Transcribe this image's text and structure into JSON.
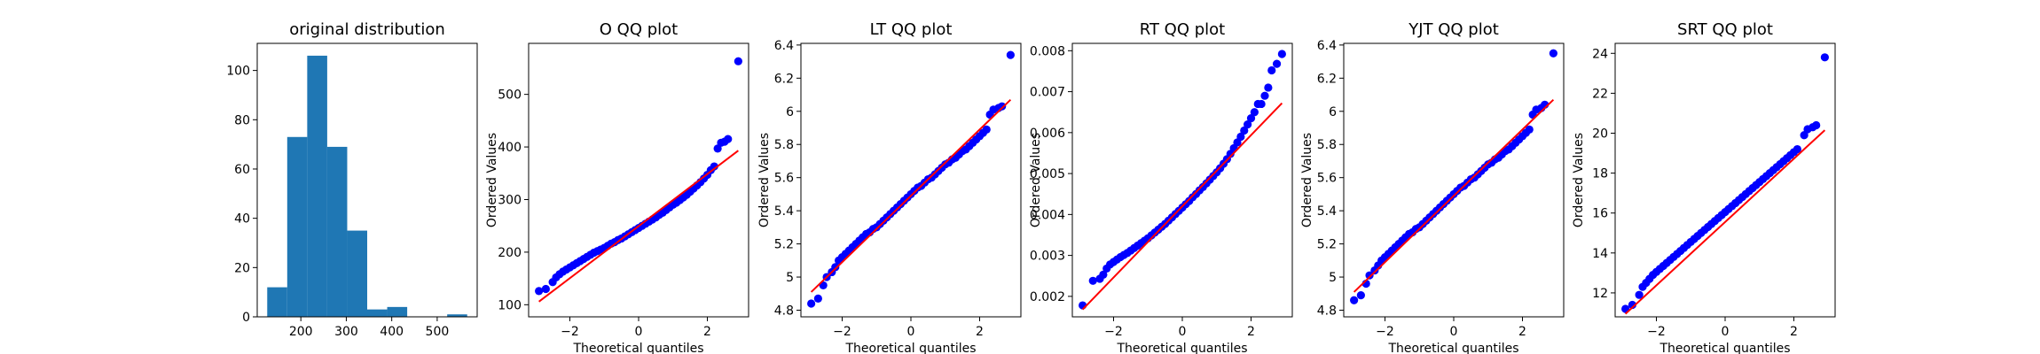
{
  "chart_data": [
    {
      "type": "bar",
      "title": "original distribution",
      "xlabel": "",
      "ylabel": "",
      "bins": [
        [
          126,
          170,
          12
        ],
        [
          170,
          214,
          73
        ],
        [
          214,
          258,
          106
        ],
        [
          258,
          302,
          69
        ],
        [
          302,
          346,
          35
        ],
        [
          346,
          390,
          3
        ],
        [
          390,
          434,
          4
        ],
        [
          434,
          478,
          0
        ],
        [
          478,
          522,
          0
        ],
        [
          522,
          566,
          1
        ]
      ],
      "xlim": [
        104,
        588
      ],
      "ylim": [
        0,
        111
      ],
      "xticks": [
        200,
        300,
        400,
        500
      ],
      "yticks": [
        0,
        20,
        40,
        60,
        80,
        100
      ],
      "color": "#1f77b4"
    },
    {
      "type": "scatter",
      "title": "O QQ plot",
      "xlabel": "Theoretical quantiles",
      "ylabel": "Ordered Values",
      "xlim": [
        -3.2,
        3.2
      ],
      "ylim": [
        77,
        597
      ],
      "xticks": [
        -2,
        0,
        2
      ],
      "yticks": [
        100,
        200,
        300,
        400,
        500
      ],
      "fit_line": {
        "x": [
          -2.9,
          2.9
        ],
        "y": [
          106,
          393
        ]
      },
      "points": [
        [
          -2.9,
          126
        ],
        [
          -2.7,
          130
        ],
        [
          -2.5,
          143
        ],
        [
          -2.4,
          152
        ],
        [
          -2.3,
          158
        ],
        [
          -2.2,
          163
        ],
        [
          -2.1,
          167
        ],
        [
          -2.0,
          171
        ],
        [
          -1.9,
          175
        ],
        [
          -1.8,
          179
        ],
        [
          -1.7,
          183
        ],
        [
          -1.6,
          187
        ],
        [
          -1.5,
          191
        ],
        [
          -1.4,
          195
        ],
        [
          -1.3,
          199
        ],
        [
          -1.2,
          202
        ],
        [
          -1.1,
          205
        ],
        [
          -1.0,
          208
        ],
        [
          -0.9,
          212
        ],
        [
          -0.8,
          216
        ],
        [
          -0.7,
          219
        ],
        [
          -0.6,
          223
        ],
        [
          -0.5,
          226
        ],
        [
          -0.4,
          230
        ],
        [
          -0.3,
          234
        ],
        [
          -0.2,
          238
        ],
        [
          -0.1,
          242
        ],
        [
          0.0,
          246
        ],
        [
          0.1,
          250
        ],
        [
          0.2,
          254
        ],
        [
          0.3,
          258
        ],
        [
          0.4,
          262
        ],
        [
          0.5,
          266
        ],
        [
          0.6,
          271
        ],
        [
          0.7,
          275
        ],
        [
          0.8,
          280
        ],
        [
          0.9,
          285
        ],
        [
          1.0,
          290
        ],
        [
          1.1,
          294
        ],
        [
          1.2,
          299
        ],
        [
          1.3,
          304
        ],
        [
          1.4,
          309
        ],
        [
          1.5,
          315
        ],
        [
          1.6,
          321
        ],
        [
          1.7,
          327
        ],
        [
          1.8,
          333
        ],
        [
          1.9,
          340
        ],
        [
          2.0,
          347
        ],
        [
          2.1,
          356
        ],
        [
          2.2,
          363
        ],
        [
          2.3,
          397
        ],
        [
          2.4,
          408
        ],
        [
          2.5,
          410
        ],
        [
          2.6,
          415
        ],
        [
          2.9,
          563
        ]
      ]
    },
    {
      "type": "scatter",
      "title": "LT QQ plot",
      "xlabel": "Theoretical quantiles",
      "ylabel": "Ordered Values",
      "xlim": [
        -3.2,
        3.2
      ],
      "ylim": [
        4.76,
        6.41
      ],
      "xticks": [
        -2,
        0,
        2
      ],
      "yticks": [
        4.8,
        5.0,
        5.2,
        5.4,
        5.6,
        5.8,
        6.0,
        6.2,
        6.4
      ],
      "fit_line": {
        "x": [
          -2.9,
          2.9
        ],
        "y": [
          4.91,
          6.07
        ]
      },
      "points": [
        [
          -2.9,
          4.84
        ],
        [
          -2.7,
          4.87
        ],
        [
          -2.55,
          4.95
        ],
        [
          -2.45,
          5.0
        ],
        [
          -2.3,
          5.03
        ],
        [
          -2.2,
          5.06
        ],
        [
          -2.1,
          5.1
        ],
        [
          -2.0,
          5.12
        ],
        [
          -1.9,
          5.14
        ],
        [
          -1.8,
          5.16
        ],
        [
          -1.7,
          5.18
        ],
        [
          -1.6,
          5.2
        ],
        [
          -1.5,
          5.22
        ],
        [
          -1.4,
          5.24
        ],
        [
          -1.3,
          5.26
        ],
        [
          -1.2,
          5.27
        ],
        [
          -1.1,
          5.29
        ],
        [
          -1.0,
          5.3
        ],
        [
          -0.9,
          5.32
        ],
        [
          -0.8,
          5.34
        ],
        [
          -0.7,
          5.36
        ],
        [
          -0.6,
          5.38
        ],
        [
          -0.5,
          5.4
        ],
        [
          -0.4,
          5.42
        ],
        [
          -0.3,
          5.44
        ],
        [
          -0.2,
          5.46
        ],
        [
          -0.1,
          5.48
        ],
        [
          0.0,
          5.5
        ],
        [
          0.1,
          5.52
        ],
        [
          0.2,
          5.54
        ],
        [
          0.3,
          5.55
        ],
        [
          0.4,
          5.57
        ],
        [
          0.5,
          5.59
        ],
        [
          0.6,
          5.6
        ],
        [
          0.7,
          5.62
        ],
        [
          0.8,
          5.64
        ],
        [
          0.9,
          5.66
        ],
        [
          1.0,
          5.68
        ],
        [
          1.1,
          5.69
        ],
        [
          1.2,
          5.71
        ],
        [
          1.3,
          5.72
        ],
        [
          1.4,
          5.74
        ],
        [
          1.5,
          5.76
        ],
        [
          1.6,
          5.77
        ],
        [
          1.7,
          5.79
        ],
        [
          1.8,
          5.81
        ],
        [
          1.9,
          5.83
        ],
        [
          2.0,
          5.85
        ],
        [
          2.1,
          5.87
        ],
        [
          2.2,
          5.89
        ],
        [
          2.3,
          5.98
        ],
        [
          2.4,
          6.01
        ],
        [
          2.55,
          6.02
        ],
        [
          2.65,
          6.03
        ],
        [
          2.9,
          6.34
        ]
      ]
    },
    {
      "type": "scatter",
      "title": "RT QQ plot",
      "xlabel": "Theoretical quantiles",
      "ylabel": "Ordered Values",
      "xlim": [
        -3.2,
        3.2
      ],
      "ylim": [
        0.0015,
        0.00818
      ],
      "xticks": [
        -2,
        0,
        2
      ],
      "yticks": [
        0.002,
        0.003,
        0.004,
        0.005,
        0.006,
        0.007,
        0.008
      ],
      "fit_line": {
        "x": [
          -2.9,
          2.9
        ],
        "y": [
          0.00168,
          0.00672
        ]
      },
      "points": [
        [
          -2.9,
          0.00178
        ],
        [
          -2.6,
          0.00238
        ],
        [
          -2.4,
          0.00243
        ],
        [
          -2.3,
          0.00253
        ],
        [
          -2.2,
          0.00268
        ],
        [
          -2.1,
          0.00278
        ],
        [
          -2.0,
          0.00284
        ],
        [
          -1.9,
          0.0029
        ],
        [
          -1.8,
          0.00296
        ],
        [
          -1.7,
          0.00301
        ],
        [
          -1.6,
          0.00306
        ],
        [
          -1.5,
          0.00312
        ],
        [
          -1.4,
          0.00318
        ],
        [
          -1.3,
          0.00324
        ],
        [
          -1.2,
          0.0033
        ],
        [
          -1.1,
          0.00336
        ],
        [
          -1.0,
          0.00342
        ],
        [
          -0.9,
          0.00349
        ],
        [
          -0.8,
          0.00356
        ],
        [
          -0.7,
          0.00363
        ],
        [
          -0.6,
          0.0037
        ],
        [
          -0.5,
          0.00377
        ],
        [
          -0.4,
          0.00385
        ],
        [
          -0.3,
          0.00393
        ],
        [
          -0.2,
          0.00401
        ],
        [
          -0.1,
          0.00409
        ],
        [
          0.0,
          0.00417
        ],
        [
          0.1,
          0.00425
        ],
        [
          0.2,
          0.00433
        ],
        [
          0.3,
          0.00442
        ],
        [
          0.4,
          0.0045
        ],
        [
          0.5,
          0.00459
        ],
        [
          0.6,
          0.00467
        ],
        [
          0.7,
          0.00476
        ],
        [
          0.8,
          0.00485
        ],
        [
          0.9,
          0.00494
        ],
        [
          1.0,
          0.00503
        ],
        [
          1.1,
          0.00513
        ],
        [
          1.2,
          0.00524
        ],
        [
          1.3,
          0.00535
        ],
        [
          1.4,
          0.00548
        ],
        [
          1.5,
          0.00562
        ],
        [
          1.6,
          0.00576
        ],
        [
          1.7,
          0.0059
        ],
        [
          1.8,
          0.00605
        ],
        [
          1.9,
          0.0062
        ],
        [
          2.0,
          0.00635
        ],
        [
          2.1,
          0.0065
        ],
        [
          2.2,
          0.0067
        ],
        [
          2.3,
          0.0067
        ],
        [
          2.4,
          0.0069
        ],
        [
          2.5,
          0.0071
        ],
        [
          2.6,
          0.00752
        ],
        [
          2.75,
          0.00768
        ],
        [
          2.9,
          0.00792
        ]
      ]
    },
    {
      "type": "scatter",
      "title": "YJT QQ plot",
      "xlabel": "Theoretical quantiles",
      "ylabel": "Ordered Values",
      "xlim": [
        -3.2,
        3.2
      ],
      "ylim": [
        4.76,
        6.41
      ],
      "xticks": [
        -2,
        0,
        2
      ],
      "yticks": [
        4.8,
        5.0,
        5.2,
        5.4,
        5.6,
        5.8,
        6.0,
        6.2,
        6.4
      ],
      "fit_line": {
        "x": [
          -2.9,
          2.9
        ],
        "y": [
          4.91,
          6.07
        ]
      },
      "points": [
        [
          -2.9,
          4.86
        ],
        [
          -2.7,
          4.89
        ],
        [
          -2.55,
          4.96
        ],
        [
          -2.45,
          5.01
        ],
        [
          -2.3,
          5.04
        ],
        [
          -2.2,
          5.07
        ],
        [
          -2.1,
          5.1
        ],
        [
          -2.0,
          5.12
        ],
        [
          -1.9,
          5.14
        ],
        [
          -1.8,
          5.16
        ],
        [
          -1.7,
          5.18
        ],
        [
          -1.6,
          5.2
        ],
        [
          -1.5,
          5.22
        ],
        [
          -1.4,
          5.24
        ],
        [
          -1.3,
          5.26
        ],
        [
          -1.2,
          5.27
        ],
        [
          -1.1,
          5.29
        ],
        [
          -1.0,
          5.3
        ],
        [
          -0.9,
          5.32
        ],
        [
          -0.8,
          5.34
        ],
        [
          -0.7,
          5.36
        ],
        [
          -0.6,
          5.38
        ],
        [
          -0.5,
          5.4
        ],
        [
          -0.4,
          5.42
        ],
        [
          -0.3,
          5.44
        ],
        [
          -0.2,
          5.46
        ],
        [
          -0.1,
          5.48
        ],
        [
          0.0,
          5.5
        ],
        [
          0.1,
          5.52
        ],
        [
          0.2,
          5.54
        ],
        [
          0.3,
          5.55
        ],
        [
          0.4,
          5.57
        ],
        [
          0.5,
          5.59
        ],
        [
          0.6,
          5.6
        ],
        [
          0.7,
          5.62
        ],
        [
          0.8,
          5.64
        ],
        [
          0.9,
          5.66
        ],
        [
          1.0,
          5.68
        ],
        [
          1.1,
          5.69
        ],
        [
          1.2,
          5.71
        ],
        [
          1.3,
          5.72
        ],
        [
          1.4,
          5.74
        ],
        [
          1.5,
          5.76
        ],
        [
          1.6,
          5.77
        ],
        [
          1.7,
          5.79
        ],
        [
          1.8,
          5.81
        ],
        [
          1.9,
          5.83
        ],
        [
          2.0,
          5.85
        ],
        [
          2.1,
          5.87
        ],
        [
          2.2,
          5.89
        ],
        [
          2.3,
          5.98
        ],
        [
          2.4,
          6.01
        ],
        [
          2.55,
          6.02
        ],
        [
          2.65,
          6.04
        ],
        [
          2.9,
          6.35
        ]
      ]
    },
    {
      "type": "scatter",
      "title": "SRT QQ plot",
      "xlabel": "Theoretical quantiles",
      "ylabel": "Ordered Values",
      "xlim": [
        -3.2,
        3.2
      ],
      "ylim": [
        10.8,
        24.5
      ],
      "xticks": [
        -2,
        0,
        2
      ],
      "yticks": [
        12,
        14,
        16,
        18,
        20,
        22,
        24
      ],
      "fit_line": {
        "x": [
          -2.9,
          2.9
        ],
        "y": [
          10.95,
          20.15
        ]
      },
      "points": [
        [
          -2.9,
          11.2
        ],
        [
          -2.7,
          11.4
        ],
        [
          -2.5,
          11.9
        ],
        [
          -2.4,
          12.3
        ],
        [
          -2.3,
          12.5
        ],
        [
          -2.2,
          12.7
        ],
        [
          -2.1,
          12.9
        ],
        [
          -2.0,
          13.05
        ],
        [
          -1.9,
          13.2
        ],
        [
          -1.8,
          13.35
        ],
        [
          -1.7,
          13.5
        ],
        [
          -1.6,
          13.65
        ],
        [
          -1.5,
          13.8
        ],
        [
          -1.4,
          13.95
        ],
        [
          -1.3,
          14.1
        ],
        [
          -1.2,
          14.25
        ],
        [
          -1.1,
          14.4
        ],
        [
          -1.0,
          14.55
        ],
        [
          -0.9,
          14.7
        ],
        [
          -0.8,
          14.85
        ],
        [
          -0.7,
          15.0
        ],
        [
          -0.6,
          15.15
        ],
        [
          -0.5,
          15.3
        ],
        [
          -0.4,
          15.45
        ],
        [
          -0.3,
          15.6
        ],
        [
          -0.2,
          15.75
        ],
        [
          -0.1,
          15.9
        ],
        [
          0.0,
          16.05
        ],
        [
          0.1,
          16.2
        ],
        [
          0.2,
          16.35
        ],
        [
          0.3,
          16.5
        ],
        [
          0.4,
          16.65
        ],
        [
          0.5,
          16.8
        ],
        [
          0.6,
          16.95
        ],
        [
          0.7,
          17.1
        ],
        [
          0.8,
          17.25
        ],
        [
          0.9,
          17.4
        ],
        [
          1.0,
          17.55
        ],
        [
          1.1,
          17.7
        ],
        [
          1.2,
          17.85
        ],
        [
          1.3,
          18.0
        ],
        [
          1.4,
          18.15
        ],
        [
          1.5,
          18.3
        ],
        [
          1.6,
          18.45
        ],
        [
          1.7,
          18.6
        ],
        [
          1.8,
          18.75
        ],
        [
          1.9,
          18.9
        ],
        [
          2.0,
          19.05
        ],
        [
          2.1,
          19.2
        ],
        [
          2.3,
          19.9
        ],
        [
          2.4,
          20.2
        ],
        [
          2.55,
          20.3
        ],
        [
          2.65,
          20.4
        ],
        [
          2.9,
          23.8
        ]
      ]
    }
  ],
  "colors": {
    "bar": "#1f77b4",
    "points": "#0000ff",
    "line": "#ff0000"
  }
}
